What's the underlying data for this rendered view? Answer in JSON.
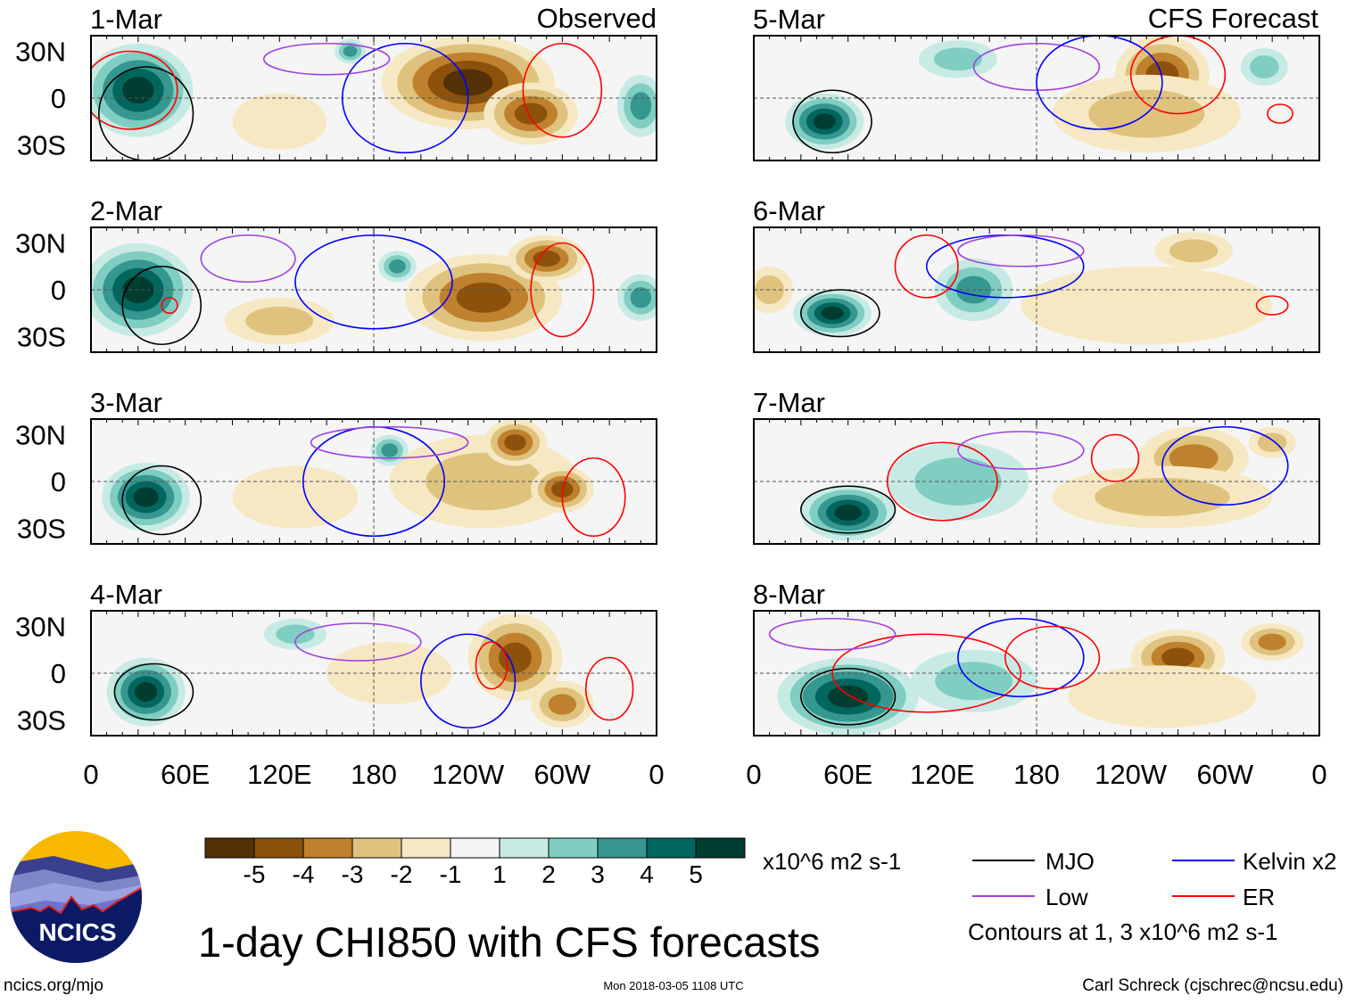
{
  "chart_data": {
    "type": "heatmap",
    "title": "1-day CHI850 with CFS forecasts",
    "units": "x10^6 m2 s-1",
    "lon_ticks": [
      "0",
      "60E",
      "120E",
      "180",
      "120W",
      "60W",
      "0"
    ],
    "lat_ticks": [
      "30N",
      "0",
      "30S"
    ],
    "lon_range": [
      0,
      360
    ],
    "lat_range": [
      -40,
      40
    ],
    "column_labels": {
      "left": "Observed",
      "right": "CFS Forecast"
    },
    "colorbar": {
      "labels": [
        "-5",
        "-4",
        "-3",
        "-2",
        "-1",
        "1",
        "2",
        "3",
        "4",
        "5"
      ],
      "colors": [
        "#543005",
        "#8c510a",
        "#bf812d",
        "#dfc27d",
        "#f6e8c3",
        "#f5f5f5",
        "#c7eae5",
        "#80cdc1",
        "#35978f",
        "#01665e",
        "#003c30"
      ]
    },
    "contour_colors": {
      "MJO": "#000000",
      "Kelvin": "#0000ff",
      "Low": "#a040e0",
      "ER": "#ff0000"
    },
    "panels": [
      {
        "label": "1-Mar",
        "column": "left",
        "row": 0,
        "anomalies": [
          [
            30,
            5,
            35,
            30,
            5
          ],
          [
            240,
            10,
            55,
            30,
            -5
          ],
          [
            280,
            -10,
            30,
            20,
            -4
          ],
          [
            120,
            -15,
            30,
            18,
            -1
          ],
          [
            350,
            -5,
            15,
            20,
            3
          ],
          [
            165,
            30,
            10,
            8,
            3
          ]
        ],
        "contours": [
          [
            "MJO",
            35,
            -10,
            30,
            30
          ],
          [
            "ER",
            25,
            5,
            30,
            25
          ],
          [
            "Kelvin",
            200,
            0,
            40,
            35
          ],
          [
            "Low",
            150,
            25,
            40,
            10
          ],
          [
            "ER",
            300,
            5,
            25,
            30
          ]
        ]
      },
      {
        "label": "2-Mar",
        "column": "left",
        "row": 1,
        "anomalies": [
          [
            30,
            0,
            35,
            30,
            5
          ],
          [
            250,
            -5,
            50,
            28,
            -4
          ],
          [
            290,
            20,
            25,
            15,
            -4
          ],
          [
            120,
            -20,
            35,
            15,
            -2
          ],
          [
            350,
            -5,
            15,
            15,
            3
          ],
          [
            195,
            15,
            12,
            10,
            3
          ]
        ],
        "contours": [
          [
            "MJO",
            45,
            -10,
            25,
            25
          ],
          [
            "ER",
            50,
            -10,
            5,
            5
          ],
          [
            "Kelvin",
            180,
            5,
            50,
            30
          ],
          [
            "ER",
            300,
            0,
            20,
            30
          ],
          [
            "Low",
            100,
            20,
            30,
            15
          ]
        ]
      },
      {
        "label": "3-Mar",
        "column": "left",
        "row": 2,
        "anomalies": [
          [
            35,
            -10,
            28,
            22,
            5
          ],
          [
            250,
            0,
            60,
            30,
            -2
          ],
          [
            270,
            25,
            20,
            15,
            -4
          ],
          [
            300,
            -5,
            20,
            15,
            -4
          ],
          [
            130,
            -10,
            40,
            20,
            -1
          ],
          [
            190,
            20,
            12,
            10,
            3
          ]
        ],
        "contours": [
          [
            "MJO",
            45,
            -12,
            25,
            22
          ],
          [
            "Kelvin",
            180,
            0,
            45,
            35
          ],
          [
            "Low",
            190,
            25,
            50,
            10
          ],
          [
            "ER",
            320,
            -10,
            20,
            25
          ]
        ]
      },
      {
        "label": "4-Mar",
        "column": "left",
        "row": 3,
        "anomalies": [
          [
            35,
            -12,
            25,
            22,
            5
          ],
          [
            270,
            10,
            30,
            28,
            -4
          ],
          [
            300,
            -20,
            20,
            15,
            -3
          ],
          [
            130,
            25,
            20,
            10,
            2
          ],
          [
            190,
            0,
            40,
            20,
            -1
          ]
        ],
        "contours": [
          [
            "MJO",
            40,
            -12,
            25,
            18
          ],
          [
            "Kelvin",
            240,
            -5,
            30,
            30
          ],
          [
            "Low",
            170,
            20,
            40,
            12
          ],
          [
            "ER",
            255,
            5,
            10,
            15
          ],
          [
            "ER",
            330,
            -10,
            15,
            20
          ]
        ]
      },
      {
        "label": "5-Mar",
        "column": "right",
        "row": 0,
        "anomalies": [
          [
            45,
            -15,
            25,
            18,
            5
          ],
          [
            260,
            15,
            30,
            25,
            -4
          ],
          [
            250,
            -10,
            60,
            25,
            -2
          ],
          [
            130,
            25,
            25,
            12,
            2
          ],
          [
            325,
            20,
            15,
            12,
            2
          ]
        ],
        "contours": [
          [
            "MJO",
            50,
            -15,
            25,
            20
          ],
          [
            "Low",
            180,
            20,
            40,
            15
          ],
          [
            "ER",
            270,
            15,
            30,
            25
          ],
          [
            "Kelvin",
            220,
            10,
            40,
            30
          ],
          [
            "ER",
            335,
            -10,
            8,
            6
          ]
        ]
      },
      {
        "label": "6-Mar",
        "column": "right",
        "row": 1,
        "anomalies": [
          [
            50,
            -15,
            25,
            15,
            5
          ],
          [
            140,
            0,
            25,
            20,
            3
          ],
          [
            250,
            -10,
            80,
            25,
            -1
          ],
          [
            280,
            25,
            25,
            12,
            -2
          ],
          [
            10,
            0,
            15,
            15,
            -2
          ]
        ],
        "contours": [
          [
            "MJO",
            55,
            -15,
            25,
            15
          ],
          [
            "Kelvin",
            160,
            15,
            50,
            20
          ],
          [
            "ER",
            110,
            15,
            20,
            20
          ],
          [
            "Low",
            170,
            25,
            40,
            10
          ],
          [
            "ER",
            330,
            -10,
            10,
            6
          ]
        ]
      },
      {
        "label": "7-Mar",
        "column": "right",
        "row": 2,
        "anomalies": [
          [
            60,
            -20,
            30,
            18,
            5
          ],
          [
            130,
            0,
            45,
            25,
            2
          ],
          [
            280,
            15,
            35,
            20,
            -3
          ],
          [
            260,
            -10,
            70,
            20,
            -2
          ],
          [
            330,
            25,
            15,
            10,
            -2
          ]
        ],
        "contours": [
          [
            "MJO",
            60,
            -18,
            30,
            15
          ],
          [
            "ER",
            120,
            0,
            35,
            25
          ],
          [
            "Low",
            170,
            20,
            40,
            12
          ],
          [
            "Kelvin",
            300,
            10,
            40,
            25
          ],
          [
            "ER",
            230,
            15,
            15,
            15
          ]
        ]
      },
      {
        "label": "8-Mar",
        "column": "right",
        "row": 3,
        "anomalies": [
          [
            60,
            -15,
            45,
            25,
            5
          ],
          [
            140,
            -5,
            40,
            20,
            2
          ],
          [
            270,
            10,
            30,
            18,
            -4
          ],
          [
            330,
            20,
            20,
            12,
            -3
          ],
          [
            260,
            -15,
            60,
            20,
            -1
          ]
        ],
        "contours": [
          [
            "MJO",
            60,
            -15,
            30,
            18
          ],
          [
            "ER",
            110,
            0,
            60,
            25
          ],
          [
            "Kelvin",
            170,
            10,
            40,
            25
          ],
          [
            "Low",
            50,
            25,
            40,
            10
          ],
          [
            "ER",
            190,
            10,
            30,
            20
          ]
        ]
      }
    ],
    "legend": [
      {
        "name": "MJO",
        "key": "MJO"
      },
      {
        "name": "Low",
        "key": "Low"
      },
      {
        "name": "Kelvin x2",
        "key": "Kelvin"
      },
      {
        "name": "ER",
        "key": "ER"
      }
    ],
    "contour_note": "Contours at 1, 3 x10^6 m2 s-1"
  },
  "footer": {
    "site": "ncics.org/mjo",
    "timestamp": "Mon 2018-03-05 1108 UTC",
    "author": "Carl Schreck (cjschrec@ncsu.edu)"
  },
  "logo": {
    "text": "NCICS"
  }
}
